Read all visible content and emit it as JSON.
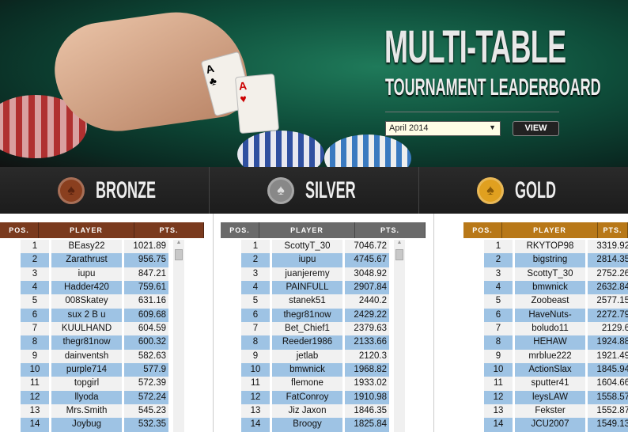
{
  "header": {
    "title_line1": "MULTI-TABLE",
    "title_line2": "TOURNAMENT LEADERBOARD",
    "month_select": "April 2014",
    "view_label": "VIEW"
  },
  "columns": {
    "pos": "POS.",
    "player": "PLAYER",
    "pts": "PTS."
  },
  "tiers": [
    {
      "name": "BRONZE",
      "color": "#7a3a1e",
      "rows": [
        [
          "1",
          "BEasy22",
          "1021.89"
        ],
        [
          "2",
          "Zarathrust",
          "956.75"
        ],
        [
          "3",
          "iupu",
          "847.21"
        ],
        [
          "4",
          "Hadder420",
          "759.61"
        ],
        [
          "5",
          "008Skatey",
          "631.16"
        ],
        [
          "6",
          "sux 2 B u",
          "609.68"
        ],
        [
          "7",
          "KUULHAND",
          "604.59"
        ],
        [
          "8",
          "thegr81now",
          "600.32"
        ],
        [
          "9",
          "dainventsh",
          "582.63"
        ],
        [
          "10",
          "purple714",
          "577.9"
        ],
        [
          "11",
          "topgirl",
          "572.39"
        ],
        [
          "12",
          "llyoda",
          "572.24"
        ],
        [
          "13",
          "Mrs.Smith",
          "545.23"
        ],
        [
          "14",
          "Joybug",
          "532.35"
        ]
      ]
    },
    {
      "name": "SILVER",
      "color": "#6a6a6a",
      "rows": [
        [
          "1",
          "ScottyT_30",
          "7046.72"
        ],
        [
          "2",
          "iupu",
          "4745.67"
        ],
        [
          "3",
          "juanjeremy",
          "3048.92"
        ],
        [
          "4",
          "PAINFULL",
          "2907.84"
        ],
        [
          "5",
          "stanek51",
          "2440.2"
        ],
        [
          "6",
          "thegr81now",
          "2429.22"
        ],
        [
          "7",
          "Bet_Chief1",
          "2379.63"
        ],
        [
          "8",
          "Reeder1986",
          "2133.66"
        ],
        [
          "9",
          "jetlab",
          "2120.3"
        ],
        [
          "10",
          "bmwnick",
          "1968.82"
        ],
        [
          "11",
          "flemone",
          "1933.02"
        ],
        [
          "12",
          "FatConroy",
          "1910.98"
        ],
        [
          "13",
          "Jiz Jaxon",
          "1846.35"
        ],
        [
          "14",
          "Broogy",
          "1825.84"
        ]
      ]
    },
    {
      "name": "GOLD",
      "color": "#b87818",
      "rows": [
        [
          "1",
          "RKYTOP98",
          "3319.92"
        ],
        [
          "2",
          "bigstring",
          "2814.35"
        ],
        [
          "3",
          "ScottyT_30",
          "2752.26"
        ],
        [
          "4",
          "bmwnick",
          "2632.84"
        ],
        [
          "5",
          "Zoobeast",
          "2577.15"
        ],
        [
          "6",
          "HaveNuts-",
          "2272.79"
        ],
        [
          "7",
          "boludo11",
          "2129.6"
        ],
        [
          "8",
          "HEHAW",
          "1924.88"
        ],
        [
          "9",
          "mrblue222",
          "1921.49"
        ],
        [
          "10",
          "ActionSlax",
          "1845.94"
        ],
        [
          "11",
          "sputter41",
          "1604.66"
        ],
        [
          "12",
          "leysLAW",
          "1558.57"
        ],
        [
          "13",
          "Fekster",
          "1552.87"
        ],
        [
          "14",
          "JCU2007",
          "1549.13"
        ]
      ]
    }
  ]
}
